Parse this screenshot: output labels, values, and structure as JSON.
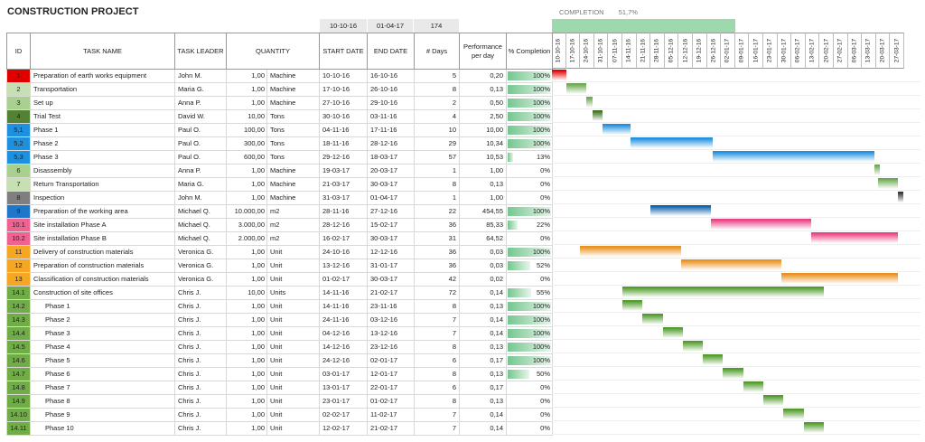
{
  "title": "CONSTRUCTION PROJECT",
  "summary": {
    "start": "10-10-16",
    "end": "01-04-17",
    "days": "174"
  },
  "completion": {
    "label": "COMPLETION",
    "value": "51,7%",
    "fraction": 0.517
  },
  "headers": {
    "id": "ID",
    "task": "TASK NAME",
    "leader": "TASK LEADER",
    "quantity": "QUANTITY",
    "start": "START DATE",
    "end": "END DATE",
    "days": "# Days",
    "perf": "Performance per day",
    "pct": "% Completion"
  },
  "timeline_dates": [
    "10-10-16",
    "17-10-16",
    "24-10-16",
    "31-10-16",
    "07-11-16",
    "14-11-16",
    "21-11-16",
    "28-11-16",
    "05-12-16",
    "12-12-16",
    "19-12-16",
    "26-12-16",
    "02-01-17",
    "09-01-17",
    "16-01-17",
    "23-01-17",
    "30-01-17",
    "06-02-17",
    "13-02-17",
    "20-02-17",
    "27-02-17",
    "06-03-17",
    "13-03-17",
    "20-03-17",
    "27-03-17"
  ],
  "timeline_start": "2016-10-10",
  "tasks": [
    {
      "id": "1",
      "color": "#e00000",
      "name": "Preparation of earth works equipment",
      "indent": false,
      "leader": "John M.",
      "qty": "1,00",
      "unit": "Machine",
      "start": "10-10-16",
      "end": "16-10-16",
      "days": "5",
      "perf": "0,20",
      "pct": "100%",
      "frac": 1.0,
      "bar": "#e00000"
    },
    {
      "id": "2",
      "color": "#c6e0b4",
      "name": "Transportation",
      "indent": false,
      "leader": "Maria G.",
      "qty": "1,00",
      "unit": "Machine",
      "start": "17-10-16",
      "end": "26-10-16",
      "days": "8",
      "perf": "0,13",
      "pct": "100%",
      "frac": 1.0,
      "bar": "#6aa84f"
    },
    {
      "id": "3",
      "color": "#a9d08e",
      "name": "Set up",
      "indent": false,
      "leader": "Anna P.",
      "qty": "1,00",
      "unit": "Machine",
      "start": "27-10-16",
      "end": "29-10-16",
      "days": "2",
      "perf": "0,50",
      "pct": "100%",
      "frac": 1.0,
      "bar": "#6aa84f"
    },
    {
      "id": "4",
      "color": "#548235",
      "name": "Trial Test",
      "indent": false,
      "leader": "David W.",
      "qty": "10,00",
      "unit": "Tons",
      "start": "30-10-16",
      "end": "03-11-16",
      "days": "4",
      "perf": "2,50",
      "pct": "100%",
      "frac": 1.0,
      "bar": "#3f6f22"
    },
    {
      "id": "5,1",
      "color": "#1e90e0",
      "name": "Phase 1",
      "indent": false,
      "leader": "Paul O.",
      "qty": "100,00",
      "unit": "Tons",
      "start": "04-11-16",
      "end": "17-11-16",
      "days": "10",
      "perf": "10,00",
      "pct": "100%",
      "frac": 1.0,
      "bar": "#1e8fe0"
    },
    {
      "id": "5,2",
      "color": "#1e90e0",
      "name": "Phase 2",
      "indent": false,
      "leader": "Paul O.",
      "qty": "300,00",
      "unit": "Tons",
      "start": "18-11-16",
      "end": "28-12-16",
      "days": "29",
      "perf": "10,34",
      "pct": "100%",
      "frac": 1.0,
      "bar": "#1e8fe0"
    },
    {
      "id": "5,3",
      "color": "#1e90e0",
      "name": "Phase 3",
      "indent": false,
      "leader": "Paul O.",
      "qty": "600,00",
      "unit": "Tons",
      "start": "29-12-16",
      "end": "18-03-17",
      "days": "57",
      "perf": "10,53",
      "pct": "13%",
      "frac": 0.13,
      "bar": "#1e8fe0"
    },
    {
      "id": "6",
      "color": "#a9d08e",
      "name": "Disassembly",
      "indent": false,
      "leader": "Anna P.",
      "qty": "1,00",
      "unit": "Machine",
      "start": "19-03-17",
      "end": "20-03-17",
      "days": "1",
      "perf": "1,00",
      "pct": "0%",
      "frac": 0,
      "bar": "#6aa84f"
    },
    {
      "id": "7",
      "color": "#c6e0b4",
      "name": "Return Transportation",
      "indent": false,
      "leader": "Maria G.",
      "qty": "1,00",
      "unit": "Machine",
      "start": "21-03-17",
      "end": "30-03-17",
      "days": "8",
      "perf": "0,13",
      "pct": "0%",
      "frac": 0,
      "bar": "#6aa84f"
    },
    {
      "id": "8",
      "color": "#7f7f7f",
      "name": "Inspection",
      "indent": false,
      "leader": "John M.",
      "qty": "1,00",
      "unit": "Machine",
      "start": "31-03-17",
      "end": "01-04-17",
      "days": "1",
      "perf": "1,00",
      "pct": "0%",
      "frac": 0,
      "bar": "#333333"
    },
    {
      "id": "9",
      "color": "#1f77c9",
      "name": "Preparation of the working area",
      "indent": false,
      "leader": "Michael Q.",
      "qty": "10.000,00",
      "unit": "m2",
      "start": "28-11-16",
      "end": "27-12-16",
      "days": "22",
      "perf": "454,55",
      "pct": "100%",
      "frac": 1.0,
      "bar": "#0b5fa8"
    },
    {
      "id": "10.1",
      "color": "#f06292",
      "name": "Site installation Phase A",
      "indent": false,
      "leader": "Michael Q.",
      "qty": "3.000,00",
      "unit": "m2",
      "start": "28-12-16",
      "end": "15-02-17",
      "days": "36",
      "perf": "85,33",
      "pct": "22%",
      "frac": 0.22,
      "bar": "#e83e80"
    },
    {
      "id": "10.2",
      "color": "#f06292",
      "name": "Site installation Phase B",
      "indent": false,
      "leader": "Michael Q.",
      "qty": "2.000,00",
      "unit": "m2",
      "start": "16-02-17",
      "end": "30-03-17",
      "days": "31",
      "perf": "64,52",
      "pct": "0%",
      "frac": 0,
      "bar": "#e83e80"
    },
    {
      "id": "11",
      "color": "#f5a623",
      "name": "Delivery of construction materials",
      "indent": false,
      "leader": "Veronica G.",
      "qty": "1,00",
      "unit": "Unit",
      "start": "24-10-16",
      "end": "12-12-16",
      "days": "36",
      "perf": "0,03",
      "pct": "100%",
      "frac": 1.0,
      "bar": "#e8901c"
    },
    {
      "id": "12",
      "color": "#f5a623",
      "name": "Preparation of construction materials",
      "indent": false,
      "leader": "Veronica G.",
      "qty": "1,00",
      "unit": "Unit",
      "start": "13-12-16",
      "end": "31-01-17",
      "days": "36",
      "perf": "0,03",
      "pct": "52%",
      "frac": 0.52,
      "bar": "#e8901c"
    },
    {
      "id": "13",
      "color": "#f5a623",
      "name": "Classification of construction materials",
      "indent": false,
      "leader": "Veronica G.",
      "qty": "1,00",
      "unit": "Unit",
      "start": "01-02-17",
      "end": "30-03-17",
      "days": "42",
      "perf": "0,02",
      "pct": "0%",
      "frac": 0,
      "bar": "#e8901c"
    },
    {
      "id": "14.1",
      "color": "#70ad47",
      "name": "Construction of site offices",
      "indent": false,
      "leader": "Chris J.",
      "qty": "10,00",
      "unit": "Units",
      "start": "14-11-16",
      "end": "21-02-17",
      "days": "72",
      "perf": "0,14",
      "pct": "55%",
      "frac": 0.55,
      "bar": "#4f9a2a"
    },
    {
      "id": "14.2",
      "color": "#70ad47",
      "name": "Phase 1",
      "indent": true,
      "leader": "Chris J.",
      "qty": "1,00",
      "unit": "Unit",
      "start": "14-11-16",
      "end": "23-11-16",
      "days": "8",
      "perf": "0,13",
      "pct": "100%",
      "frac": 1.0,
      "bar": "#4f9a2a"
    },
    {
      "id": "14.3",
      "color": "#70ad47",
      "name": "Phase 2",
      "indent": true,
      "leader": "Chris J.",
      "qty": "1,00",
      "unit": "Unit",
      "start": "24-11-16",
      "end": "03-12-16",
      "days": "7",
      "perf": "0,14",
      "pct": "100%",
      "frac": 1.0,
      "bar": "#4f9a2a"
    },
    {
      "id": "14.4",
      "color": "#70ad47",
      "name": "Phase 3",
      "indent": true,
      "leader": "Chris J.",
      "qty": "1,00",
      "unit": "Unit",
      "start": "04-12-16",
      "end": "13-12-16",
      "days": "7",
      "perf": "0,14",
      "pct": "100%",
      "frac": 1.0,
      "bar": "#4f9a2a"
    },
    {
      "id": "14.5",
      "color": "#70ad47",
      "name": "Phase 4",
      "indent": true,
      "leader": "Chris J.",
      "qty": "1,00",
      "unit": "Unit",
      "start": "14-12-16",
      "end": "23-12-16",
      "days": "8",
      "perf": "0,13",
      "pct": "100%",
      "frac": 1.0,
      "bar": "#4f9a2a"
    },
    {
      "id": "14.6",
      "color": "#70ad47",
      "name": "Phase 5",
      "indent": true,
      "leader": "Chris J.",
      "qty": "1,00",
      "unit": "Unit",
      "start": "24-12-16",
      "end": "02-01-17",
      "days": "6",
      "perf": "0,17",
      "pct": "100%",
      "frac": 1.0,
      "bar": "#4f9a2a"
    },
    {
      "id": "14.7",
      "color": "#70ad47",
      "name": "Phase 6",
      "indent": true,
      "leader": "Chris J.",
      "qty": "1,00",
      "unit": "Unit",
      "start": "03-01-17",
      "end": "12-01-17",
      "days": "8",
      "perf": "0,13",
      "pct": "50%",
      "frac": 0.5,
      "bar": "#4f9a2a"
    },
    {
      "id": "14.8",
      "color": "#70ad47",
      "name": "Phase 7",
      "indent": true,
      "leader": "Chris J.",
      "qty": "1,00",
      "unit": "Unit",
      "start": "13-01-17",
      "end": "22-01-17",
      "days": "6",
      "perf": "0,17",
      "pct": "0%",
      "frac": 0,
      "bar": "#4f9a2a"
    },
    {
      "id": "14.9",
      "color": "#70ad47",
      "name": "Phase 8",
      "indent": true,
      "leader": "Chris J.",
      "qty": "1,00",
      "unit": "Unit",
      "start": "23-01-17",
      "end": "01-02-17",
      "days": "8",
      "perf": "0,13",
      "pct": "0%",
      "frac": 0,
      "bar": "#4f9a2a"
    },
    {
      "id": "14.10",
      "color": "#70ad47",
      "name": "Phase 9",
      "indent": true,
      "leader": "Chris J.",
      "qty": "1,00",
      "unit": "Unit",
      "start": "02-02-17",
      "end": "11-02-17",
      "days": "7",
      "perf": "0,14",
      "pct": "0%",
      "frac": 0,
      "bar": "#4f9a2a"
    },
    {
      "id": "14.11",
      "color": "#70ad47",
      "name": "Phase 10",
      "indent": true,
      "leader": "Chris J.",
      "qty": "1,00",
      "unit": "Unit",
      "start": "12-02-17",
      "end": "21-02-17",
      "days": "7",
      "perf": "0,14",
      "pct": "0%",
      "frac": 0,
      "bar": "#4f9a2a"
    }
  ]
}
